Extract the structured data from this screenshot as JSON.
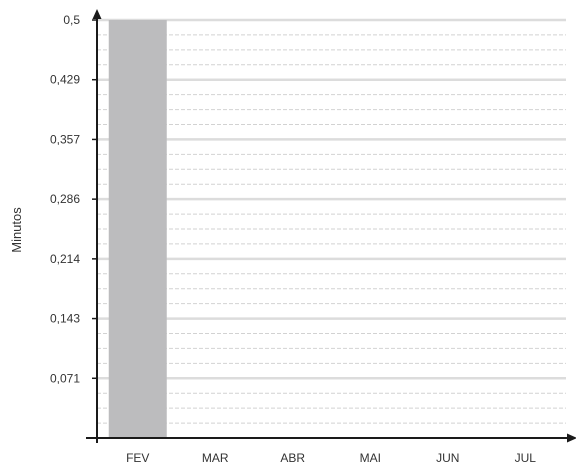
{
  "chart_data": {
    "type": "bar",
    "title": "",
    "xlabel": "",
    "ylabel": "Minutos",
    "categories": [
      "FEV",
      "MAR",
      "ABR",
      "MAI",
      "JUN",
      "JUL"
    ],
    "series": [
      {
        "values": [
          0.5,
          null,
          null,
          null,
          null,
          null
        ]
      }
    ],
    "yticks": [
      "0,5",
      "0,429",
      "0,357",
      "0,286",
      "0,214",
      "0,143",
      "0,071"
    ],
    "ylim": [
      0,
      0.5
    ],
    "grid": true,
    "legend": "none"
  },
  "colors": {
    "bar": "#bcbcbe",
    "grid_major": "#dcdcdc",
    "grid_minor": "#d2d2d2",
    "axis": "#1a1a1a",
    "text": "#333333"
  }
}
